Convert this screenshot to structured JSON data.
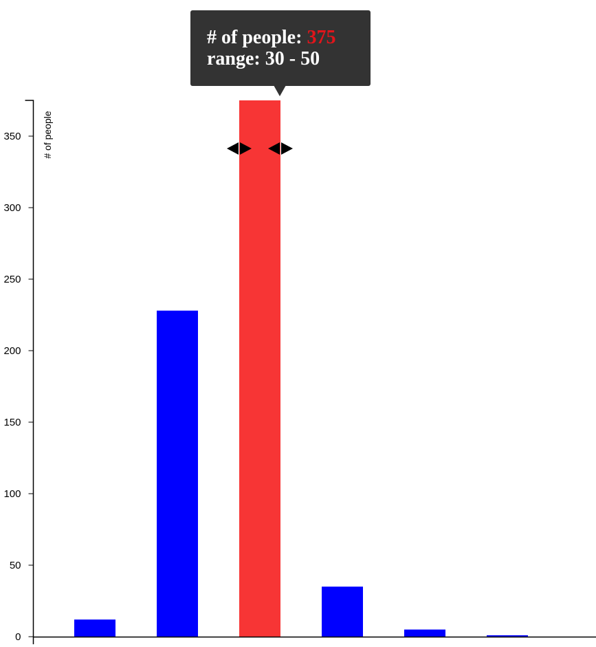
{
  "chart_data": {
    "type": "bar",
    "ylabel": "# of people",
    "yticks": [
      0,
      50,
      100,
      150,
      200,
      250,
      300,
      350
    ],
    "ylim": [
      0,
      375
    ],
    "series": [
      {
        "values": [
          12,
          228,
          375,
          35,
          5,
          1
        ]
      }
    ],
    "highlight_index": 2,
    "bar_color": "#0000ff",
    "highlight_color": "#f73535"
  },
  "tooltip": {
    "count_label": "# of people:",
    "count_value": "375",
    "count_value_color": "#e0151b",
    "range_label": "range:",
    "range_value": "30 - 50"
  },
  "resize_handles": {
    "icon": "left-right-arrow-icon"
  }
}
